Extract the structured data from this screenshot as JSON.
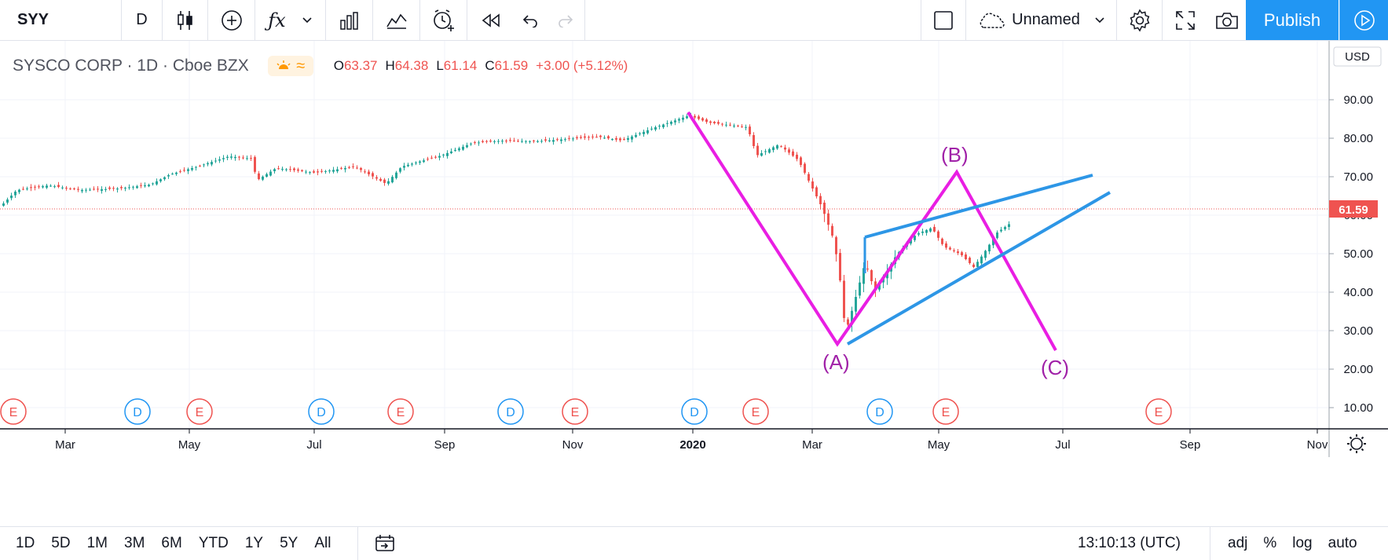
{
  "toolbar": {
    "symbol": "SYY",
    "interval": "D",
    "layout_name": "Unnamed",
    "publish_label": "Publish",
    "icons": [
      "candles-icon",
      "add-compare-icon",
      "indicators-icon",
      "chevron-down-icon",
      "bar-chart-icon",
      "templates-icon",
      "alert-icon",
      "replay-icon",
      "undo-icon",
      "redo-icon",
      "layout-square-icon",
      "cloud-icon",
      "gear-icon",
      "fullscreen-icon",
      "camera-icon",
      "play-icon"
    ]
  },
  "legend": {
    "title": "SYSCO CORP · 1D · Cboe BZX",
    "open_label": "O",
    "open": "63.37",
    "high_label": "H",
    "high": "64.38",
    "low_label": "L",
    "low": "61.14",
    "close_label": "C",
    "close": "61.59",
    "change": "+3.00 (+5.12%)"
  },
  "price_axis": {
    "currency": "USD",
    "ticks": [
      "90.00",
      "80.00",
      "70.00",
      "60.00",
      "50.00",
      "40.00",
      "30.00",
      "20.00",
      "10.00"
    ],
    "last_price": "61.59",
    "last_price_color": "#ef5350"
  },
  "time_axis": {
    "labels": [
      "Mar",
      "May",
      "Jul",
      "Sep",
      "Nov",
      "2020",
      "Mar",
      "May",
      "Jul",
      "Sep",
      "Nov"
    ]
  },
  "events": [
    {
      "type": "E"
    },
    {
      "type": "D"
    },
    {
      "type": "E"
    },
    {
      "type": "D"
    },
    {
      "type": "E"
    },
    {
      "type": "D"
    },
    {
      "type": "E"
    },
    {
      "type": "D"
    },
    {
      "type": "E"
    },
    {
      "type": "D"
    },
    {
      "type": "E"
    },
    {
      "type": "E"
    }
  ],
  "annotations": {
    "a": "(A)",
    "b": "(B)",
    "c": "(C)"
  },
  "colors": {
    "wave": "#e91ee3",
    "channel": "#2d96e6",
    "up": "#26a69a",
    "down": "#ef5350",
    "dividend": "#2196f3",
    "earnings": "#ef5350"
  },
  "bottom": {
    "ranges": [
      "1D",
      "5D",
      "1M",
      "3M",
      "6M",
      "YTD",
      "1Y",
      "5Y",
      "All"
    ],
    "time": "13:10:13 (UTC)",
    "adj": "adj",
    "percent": "%",
    "log": "log",
    "auto": "auto"
  }
}
